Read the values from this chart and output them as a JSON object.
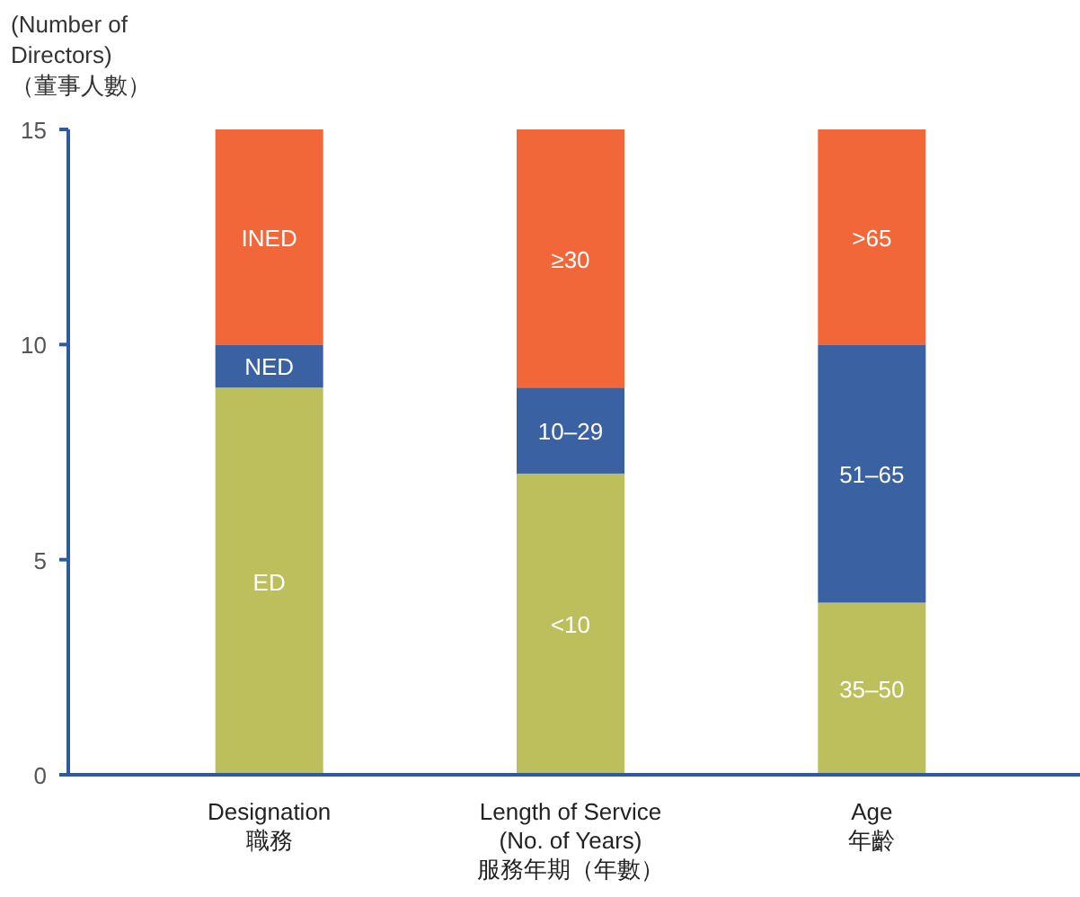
{
  "chart_data": {
    "type": "bar",
    "stacked": true,
    "ylabel": "(Number of\nDirectors)\n（董事人數）",
    "categories": [
      "Designation\n職務",
      "Length of Service\n(No. of Years)\n服務年期（年數）",
      "Age\n年齡"
    ],
    "series": [
      {
        "color": "#bdbf5c",
        "values": [
          9,
          7,
          4
        ],
        "value_labels": [
          "ED",
          "<10",
          "35–50"
        ]
      },
      {
        "color": "#3a62a2",
        "values": [
          1,
          2,
          6
        ],
        "value_labels": [
          "NED",
          "10–29",
          "51–65"
        ]
      },
      {
        "color": "#f26739",
        "values": [
          5,
          6,
          5
        ],
        "value_labels": [
          "INED",
          "≥30",
          ">65"
        ]
      }
    ],
    "ylim": [
      0,
      15
    ],
    "yticks": [
      0,
      5,
      10,
      15
    ],
    "grid": false
  }
}
